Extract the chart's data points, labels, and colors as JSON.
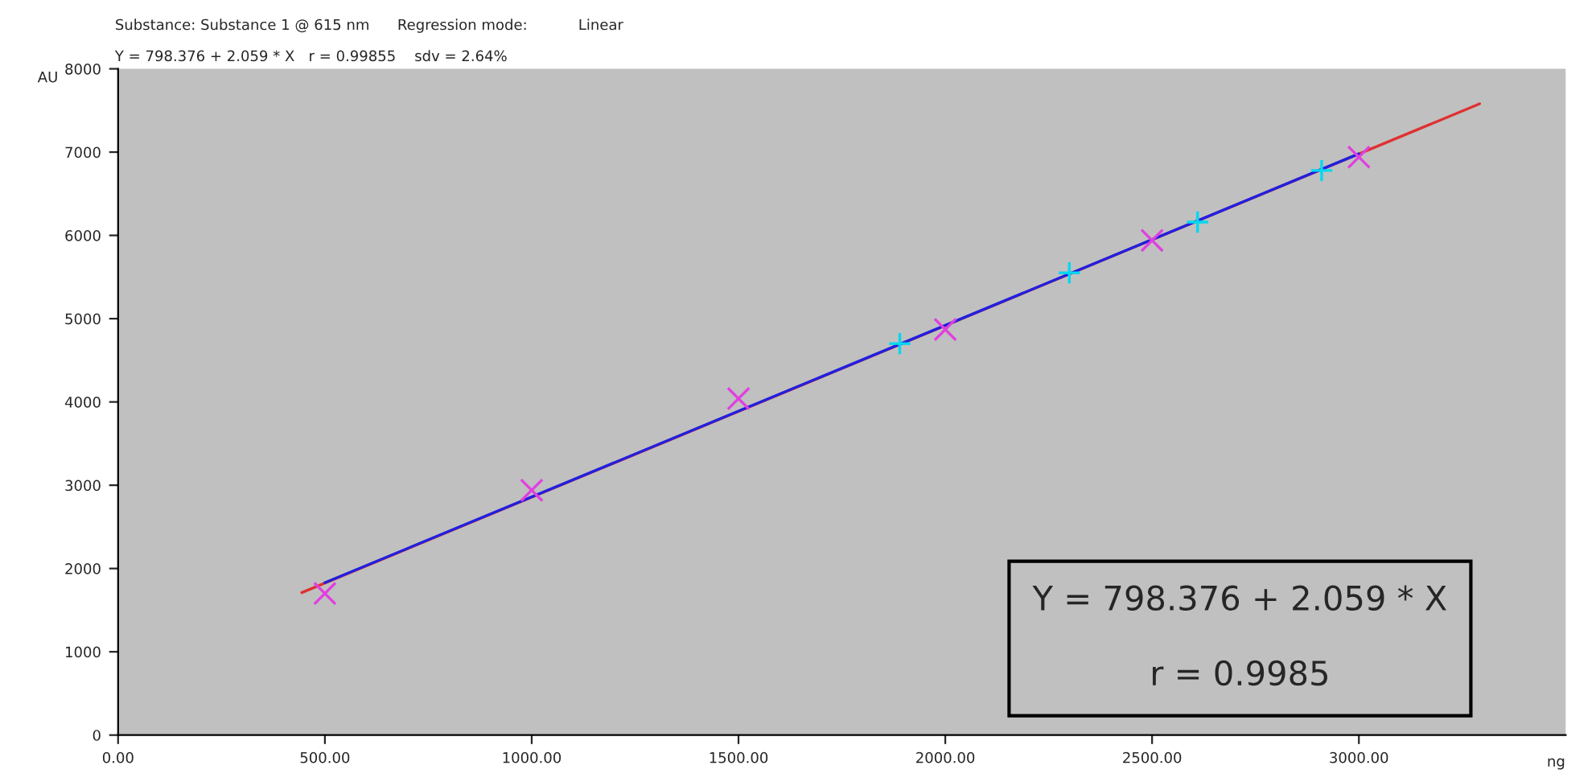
{
  "chart_data": {
    "type": "scatter",
    "annotations": [
      "Substance: Substance 1 @ 615 nm      Regression mode:           Linear",
      "Y = 798.376 + 2.059 * X   r = 0.99855    sdv = 2.64%",
      "Y = 798.376 + 2.059 * X\n\nr = 0.9985"
    ],
    "xlabel": "ng",
    "ylabel": "AU",
    "series": [
      {
        "type": "line",
        "color": "#e03030",
        "x": [
          444,
          3292
        ],
        "values": [
          1710,
          7580
        ],
        "marker": "none",
        "line_style": "solid"
      },
      {
        "type": "line",
        "color": "#2020e0",
        "x": [
          500,
          3000
        ],
        "values": [
          1830,
          6980
        ],
        "marker": "none",
        "line_style": "solid"
      },
      {
        "color": "#e040e0",
        "x": [
          500,
          1000,
          1500,
          2000,
          2500,
          3000
        ],
        "values": [
          1700,
          2940,
          4040,
          4870,
          5940,
          6940
        ],
        "marker": "cross"
      },
      {
        "color": "#00d8f0",
        "x": [
          1890,
          2300,
          2610,
          2910
        ],
        "values": [
          4700,
          5550,
          6160,
          6780
        ],
        "marker": "plus"
      }
    ],
    "xlim": [
      0,
      3500
    ],
    "ylim": [
      0,
      8000
    ],
    "xticks": [
      {
        "value": 0,
        "label": "0.00"
      },
      {
        "value": 500,
        "label": "500.00"
      },
      {
        "value": 1000,
        "label": "1000.00"
      },
      {
        "value": 1500,
        "label": "1500.00"
      },
      {
        "value": 2000,
        "label": "2000.00"
      },
      {
        "value": 2500,
        "label": "2500.00"
      },
      {
        "value": 3000,
        "label": "3000.00"
      }
    ],
    "yticks": [
      0,
      1000,
      2000,
      3000,
      4000,
      5000,
      6000,
      7000,
      8000
    ],
    "grid": false,
    "legend": false
  }
}
